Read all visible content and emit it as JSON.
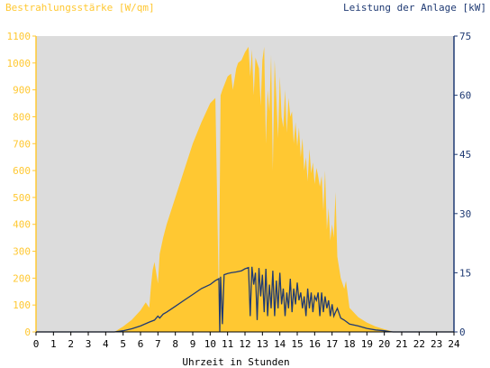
{
  "chart_data": {
    "type": "area",
    "title_left": "Bestrahlungsstärke [W/qm]",
    "title_right": "Leistung der Anlage [kW]",
    "xlabel": "Uhrzeit in Stunden",
    "xlim": [
      0,
      24
    ],
    "x_ticks": [
      "0",
      "1",
      "2",
      "3",
      "4",
      "5",
      "6",
      "7",
      "8",
      "9",
      "10",
      "11",
      "12",
      "13",
      "14",
      "15",
      "16",
      "17",
      "18",
      "19",
      "20",
      "21",
      "22",
      "23",
      "24"
    ],
    "y_left": {
      "lim": [
        0,
        1100
      ],
      "ticks": [
        "0",
        "100",
        "200",
        "300",
        "400",
        "500",
        "600",
        "700",
        "800",
        "900",
        "1000",
        "1100"
      ],
      "tick_values": [
        0,
        100,
        200,
        300,
        400,
        500,
        600,
        700,
        800,
        900,
        1000,
        1100
      ]
    },
    "y_right": {
      "lim": [
        0,
        75
      ],
      "ticks": [
        "0",
        "15",
        "30",
        "45",
        "60",
        "75"
      ],
      "tick_values": [
        0,
        15,
        30,
        45,
        60,
        75
      ]
    },
    "grid": false,
    "series": [
      {
        "axis": "left",
        "type": "area",
        "x": [
          0,
          4.5,
          5,
          5.5,
          6,
          6.3,
          6.5,
          6.6,
          6.7,
          6.8,
          7,
          7.1,
          7.2,
          7.3,
          7.5,
          8,
          8.5,
          9,
          9.5,
          10,
          10.3,
          10.5,
          10.6,
          10.7,
          11,
          11.2,
          11.3,
          11.5,
          11.6,
          11.8,
          12,
          12.2,
          12.3,
          12.4,
          12.5,
          12.6,
          12.8,
          12.9,
          13,
          13.1,
          13.2,
          13.3,
          13.4,
          13.5,
          13.6,
          13.7,
          13.8,
          13.9,
          14,
          14.1,
          14.2,
          14.3,
          14.4,
          14.5,
          14.6,
          14.7,
          14.8,
          14.9,
          15,
          15.1,
          15.2,
          15.3,
          15.4,
          15.5,
          15.6,
          15.7,
          15.8,
          15.9,
          16,
          16.1,
          16.2,
          16.3,
          16.4,
          16.5,
          16.6,
          16.7,
          16.8,
          16.9,
          17,
          17.1,
          17.2,
          17.3,
          17.5,
          17.7,
          17.8,
          18,
          18.5,
          19,
          19.5,
          20,
          20.3,
          20.5,
          21,
          24
        ],
        "values": [
          0,
          0,
          20,
          45,
          80,
          110,
          90,
          170,
          230,
          260,
          180,
          290,
          320,
          350,
          400,
          500,
          600,
          700,
          780,
          850,
          870,
          120,
          880,
          900,
          950,
          960,
          900,
          980,
          1000,
          1010,
          1040,
          1060,
          950,
          1050,
          880,
          1020,
          980,
          840,
          1010,
          1060,
          700,
          900,
          820,
          1030,
          600,
          1010,
          870,
          720,
          950,
          800,
          760,
          900,
          740,
          870,
          800,
          820,
          700,
          780,
          690,
          760,
          650,
          720,
          600,
          650,
          560,
          680,
          590,
          630,
          550,
          610,
          580,
          540,
          580,
          450,
          600,
          380,
          460,
          340,
          400,
          350,
          520,
          280,
          200,
          160,
          190,
          90,
          55,
          35,
          20,
          10,
          5,
          0,
          0,
          0
        ]
      },
      {
        "axis": "right",
        "type": "line",
        "x": [
          0,
          4.5,
          5,
          5.5,
          6,
          6.5,
          6.8,
          7,
          7.1,
          7.3,
          7.5,
          8,
          8.5,
          9,
          9.5,
          10,
          10.3,
          10.5,
          10.55,
          10.6,
          10.7,
          10.8,
          11,
          11.2,
          11.5,
          11.8,
          12,
          12.2,
          12.3,
          12.4,
          12.5,
          12.6,
          12.7,
          12.8,
          12.9,
          13,
          13.1,
          13.2,
          13.3,
          13.4,
          13.5,
          13.6,
          13.7,
          13.8,
          13.9,
          14,
          14.1,
          14.2,
          14.3,
          14.4,
          14.5,
          14.6,
          14.7,
          14.8,
          14.9,
          15,
          15.1,
          15.2,
          15.3,
          15.4,
          15.5,
          15.6,
          15.7,
          15.8,
          15.9,
          16,
          16.1,
          16.2,
          16.3,
          16.4,
          16.5,
          16.6,
          16.7,
          16.8,
          16.9,
          17,
          17.1,
          17.2,
          17.3,
          17.5,
          17.7,
          18,
          18.5,
          19,
          19.5,
          20,
          20.3,
          20.5,
          21,
          24
        ],
        "values": [
          0,
          0,
          0.3,
          0.8,
          1.5,
          2.5,
          3,
          4,
          3.5,
          4.5,
          5,
          6.5,
          8,
          9.5,
          11,
          12,
          13,
          13.5,
          0,
          14,
          2,
          14.5,
          14.8,
          15,
          15.2,
          15.5,
          16,
          16.3,
          4,
          16.5,
          12,
          15,
          3,
          16.2,
          9,
          14.5,
          5,
          16,
          4,
          12,
          6,
          15.5,
          4,
          13,
          6,
          15,
          7,
          11,
          4,
          10,
          6,
          13.5,
          5,
          11,
          7,
          12.5,
          8,
          10,
          6,
          9,
          4,
          11,
          6,
          10,
          5,
          9,
          8,
          10,
          4,
          10,
          5,
          9,
          6,
          8,
          4,
          7,
          4,
          5,
          6,
          3.5,
          3,
          2,
          1.5,
          0.9,
          0.5,
          0.3,
          0.1,
          0,
          0,
          0
        ]
      }
    ]
  },
  "colors": {
    "plot_background": "#dcdcdc",
    "irradiance_fill": "#ffc832",
    "power_line": "#1f3a73",
    "left_axis_text": "#ffc832",
    "right_axis_text": "#1f3a73",
    "x_axis_text": "#000000"
  }
}
